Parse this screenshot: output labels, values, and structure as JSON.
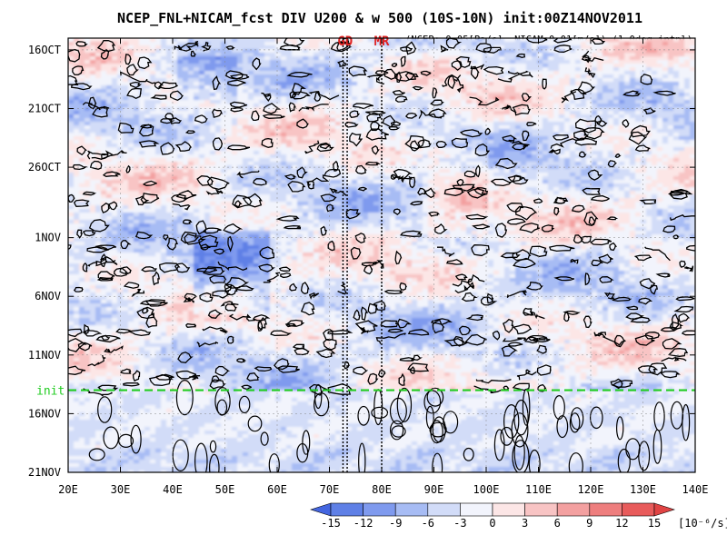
{
  "chart_data": {
    "type": "heatmap",
    "title": "NCEP_FNL+NICAM_fcst DIV U200 & w 500 (10S-10N) init:00Z14NOV2011",
    "subtitle": "(NCEP:-0.05[Pa/s], NICAM:0.01[m/s]) (1.0deg intpl)",
    "x_ticks": [
      "20E",
      "30E",
      "40E",
      "50E",
      "60E",
      "70E",
      "80E",
      "90E",
      "100E",
      "110E",
      "120E",
      "130E",
      "140E"
    ],
    "x_range": [
      20,
      140
    ],
    "y_ticks": [
      "16OCT",
      "21OCT",
      "26OCT",
      "1NOV",
      "6NOV",
      "11NOV",
      "16NOV",
      "21NOV"
    ],
    "y_tick_days": [
      0,
      5,
      10,
      16,
      21,
      26,
      31,
      36
    ],
    "y_range_days": [
      -1,
      36
    ],
    "init": {
      "label": "init",
      "day": 29,
      "color": "#22cc22"
    },
    "markers": [
      {
        "label": "GD",
        "lons": [
          72.6,
          73.4
        ]
      },
      {
        "label": "MR",
        "lons": [
          80.0
        ]
      }
    ],
    "colorbar": {
      "levels": [
        -15,
        -12,
        -9,
        -6,
        -3,
        0,
        3,
        6,
        9,
        12,
        15
      ],
      "tick_labels": [
        "-15",
        "-12",
        "-9",
        "-6",
        "-3",
        "0",
        "3",
        "6",
        "9",
        "12",
        "15"
      ],
      "unit": "[10⁻⁶/s]",
      "colors": [
        "#4466e0",
        "#5f80e6",
        "#7f9aee",
        "#a7bcf4",
        "#d2dcf8",
        "#f2f4fc",
        "#fce6e6",
        "#f8c4c4",
        "#f3a0a0",
        "#ee7e7e",
        "#e85b5b",
        "#e04444"
      ]
    }
  }
}
